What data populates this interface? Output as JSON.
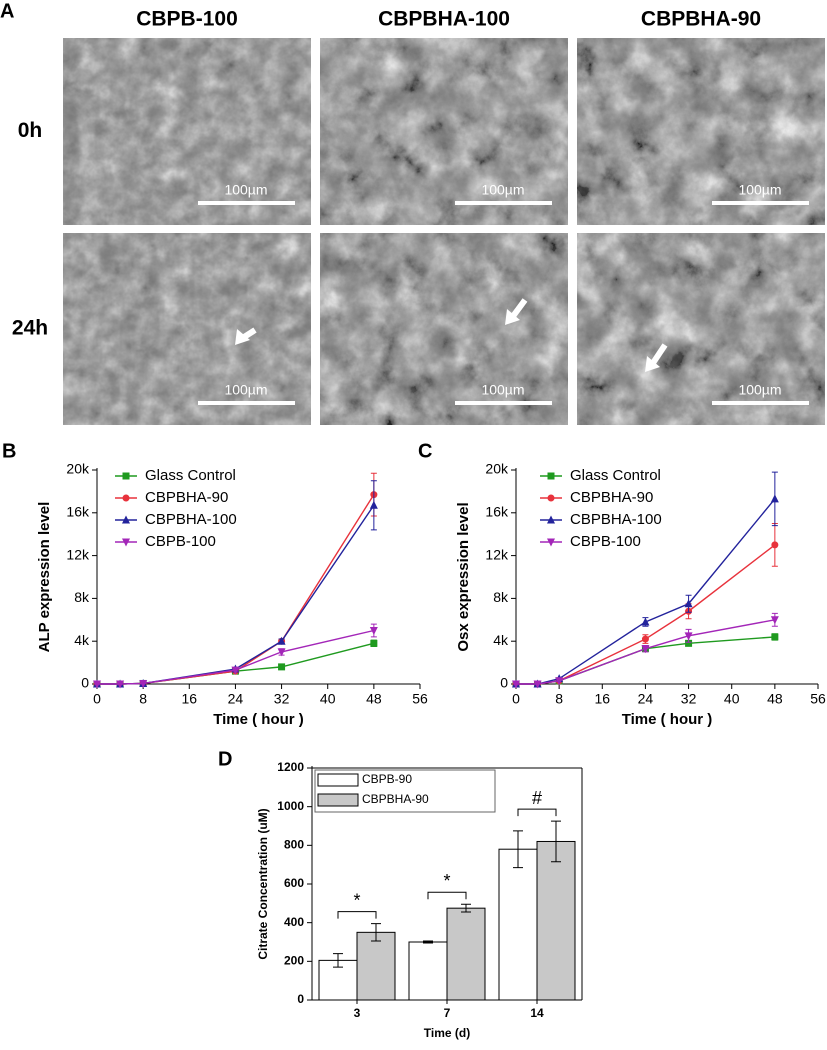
{
  "panel_a": {
    "label": "A",
    "columns": [
      "CBPB-100",
      "CBPBHA-100",
      "CBPBHA-90"
    ],
    "rows": [
      "0h",
      "24h"
    ],
    "scale_bar": "100µm"
  },
  "chart_data": [
    {
      "type": "line",
      "panel": "B",
      "xlabel": "Time ( hour )",
      "ylabel": "ALP expression level",
      "x": [
        0,
        4,
        8,
        24,
        32,
        48
      ],
      "xlim": [
        0,
        56
      ],
      "xticks": [
        0,
        8,
        16,
        24,
        32,
        40,
        48,
        56
      ],
      "ylim": [
        0,
        20000
      ],
      "yticks": [
        0,
        {
          "value": 4000,
          "label": "4k"
        },
        {
          "value": 8000,
          "label": "8k"
        },
        {
          "value": 12000,
          "label": "12k"
        },
        {
          "value": 16000,
          "label": "16k"
        },
        {
          "value": 20000,
          "label": "20k"
        }
      ],
      "series": [
        {
          "name": "Glass Control",
          "color": "#1f9a1f",
          "marker": "square",
          "values": [
            0,
            0,
            50,
            1200,
            1600,
            3800
          ],
          "errors": [
            0,
            0,
            0,
            100,
            100,
            300
          ]
        },
        {
          "name": "CBPBHA-90",
          "color": "#e8323c",
          "marker": "circle",
          "values": [
            0,
            0,
            50,
            1200,
            4000,
            17700
          ],
          "errors": [
            0,
            0,
            0,
            100,
            200,
            2000
          ]
        },
        {
          "name": "CBPBHA-100",
          "color": "#23239c",
          "marker": "triangle-up",
          "values": [
            0,
            0,
            50,
            1400,
            4000,
            16700
          ],
          "errors": [
            0,
            0,
            0,
            100,
            200,
            2300
          ]
        },
        {
          "name": "CBPB-100",
          "color": "#a326b8",
          "marker": "triangle-down",
          "values": [
            0,
            0,
            50,
            1300,
            3000,
            5000
          ],
          "errors": [
            0,
            0,
            0,
            100,
            300,
            600
          ]
        }
      ]
    },
    {
      "type": "line",
      "panel": "C",
      "xlabel": "Time ( hour )",
      "ylabel": "Osx expression level",
      "x": [
        0,
        4,
        8,
        24,
        32,
        48
      ],
      "xlim": [
        0,
        56
      ],
      "xticks": [
        0,
        8,
        16,
        24,
        32,
        40,
        48,
        56
      ],
      "ylim": [
        0,
        20000
      ],
      "yticks": [
        0,
        {
          "value": 4000,
          "label": "4k"
        },
        {
          "value": 8000,
          "label": "8k"
        },
        {
          "value": 12000,
          "label": "12k"
        },
        {
          "value": 16000,
          "label": "16k"
        },
        {
          "value": 20000,
          "label": "20k"
        }
      ],
      "series": [
        {
          "name": "Glass Control",
          "color": "#1f9a1f",
          "marker": "square",
          "values": [
            0,
            0,
            300,
            3300,
            3800,
            4400
          ],
          "errors": [
            0,
            0,
            0,
            200,
            200,
            300
          ]
        },
        {
          "name": "CBPBHA-90",
          "color": "#e8323c",
          "marker": "circle",
          "values": [
            0,
            0,
            300,
            4200,
            6800,
            13000
          ],
          "errors": [
            0,
            0,
            0,
            400,
            700,
            2000
          ]
        },
        {
          "name": "CBPBHA-100",
          "color": "#23239c",
          "marker": "triangle-up",
          "values": [
            0,
            0,
            500,
            5800,
            7500,
            17300
          ],
          "errors": [
            0,
            0,
            0,
            400,
            800,
            2500
          ]
        },
        {
          "name": "CBPB-100",
          "color": "#a326b8",
          "marker": "triangle-down",
          "values": [
            0,
            0,
            300,
            3300,
            4500,
            6000
          ],
          "errors": [
            0,
            0,
            0,
            300,
            600,
            600
          ]
        }
      ]
    },
    {
      "type": "bar",
      "panel": "D",
      "xlabel": "Time (d)",
      "ylabel": "Citrate Concentration (uM)",
      "categories": [
        "3",
        "7",
        "14"
      ],
      "ylim": [
        0,
        1200
      ],
      "yticks": [
        0,
        200,
        400,
        600,
        800,
        1000,
        1200
      ],
      "annotations": [
        "*",
        "*",
        "#"
      ],
      "series": [
        {
          "name": "CBPB-90",
          "color": "#ffffff",
          "values": [
            205,
            300,
            780
          ],
          "errors": [
            35,
            5,
            95
          ]
        },
        {
          "name": "CBPBHA-90",
          "color": "#c8c8c8",
          "values": [
            350,
            475,
            820
          ],
          "errors": [
            45,
            20,
            105
          ]
        }
      ]
    }
  ]
}
